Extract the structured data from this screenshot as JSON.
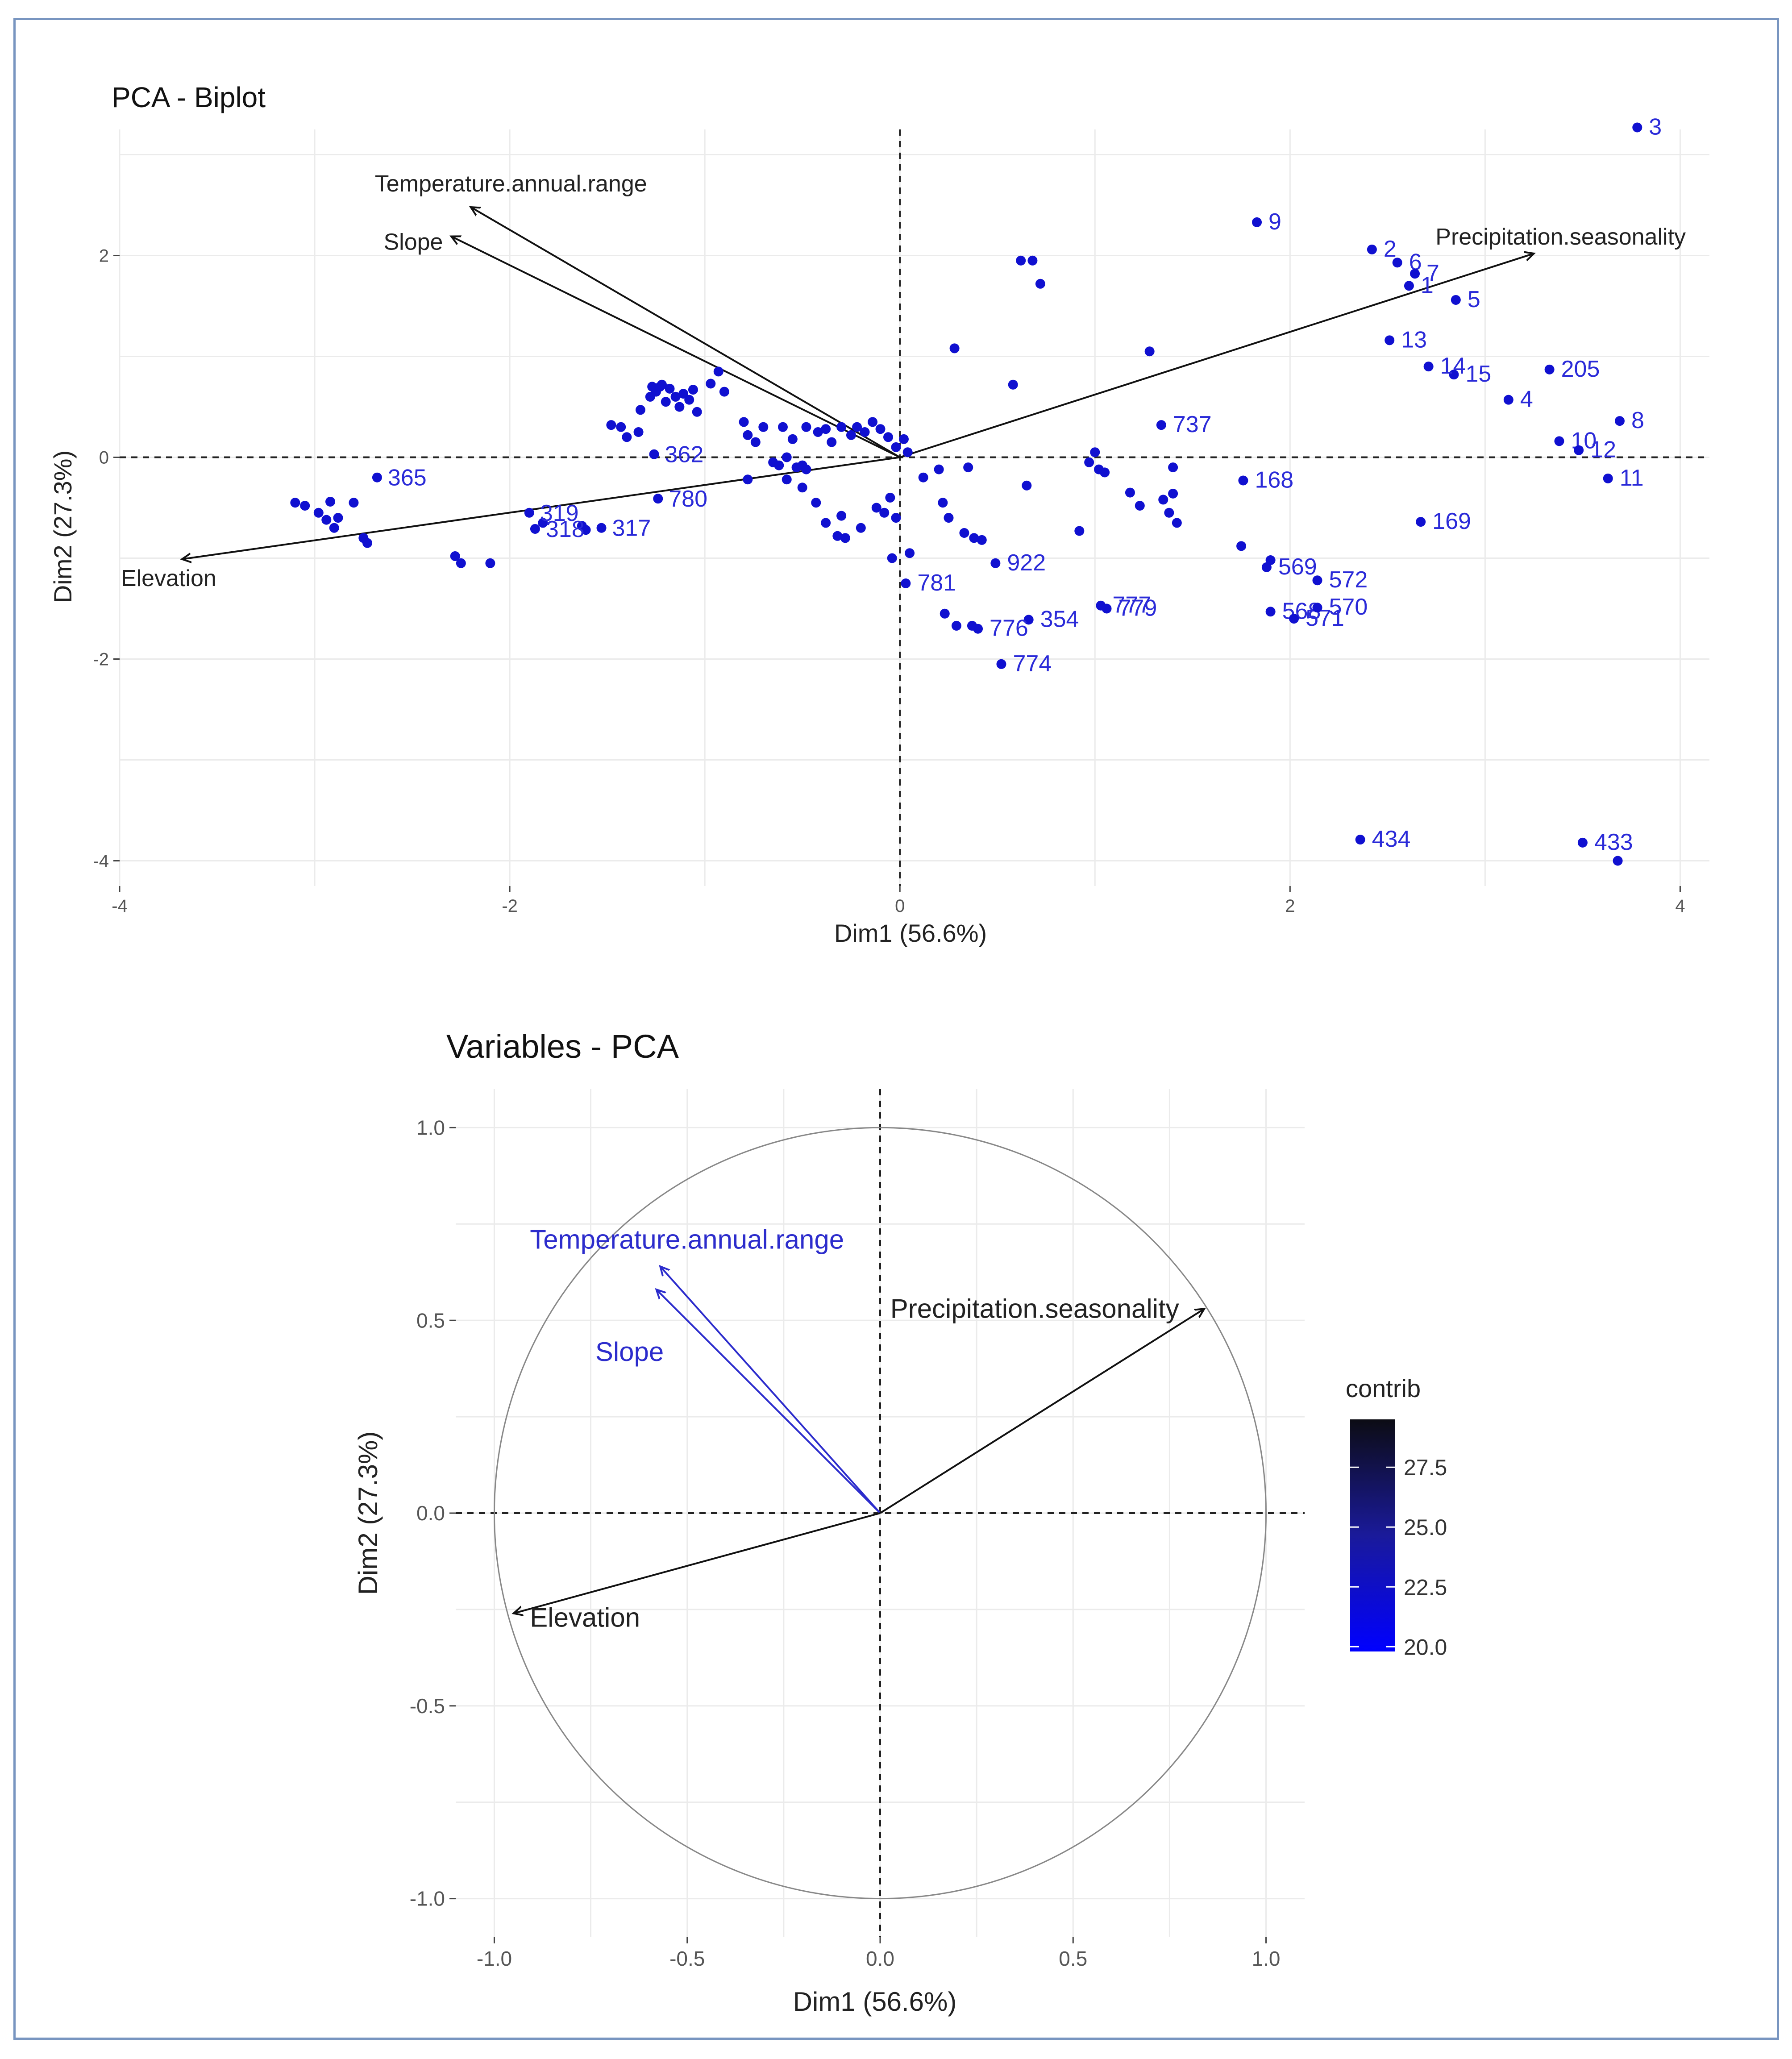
{
  "colors": {
    "point_blue": "#1010d0",
    "label_blue": "#2a2ad8",
    "arrow_black": "#111111",
    "arrow_blue": "#2c2ccc",
    "grid": "#ebebeb",
    "frame": "#7895c0"
  },
  "chart_data": [
    {
      "type": "scatter",
      "title": "PCA - Biplot",
      "xlabel": "Dim1 (56.6%)",
      "ylabel": "Dim2 (27.3%)",
      "xlim": [
        -4,
        4.15
      ],
      "ylim": [
        -4.25,
        3.25
      ],
      "xticks": [
        -4,
        -2,
        0,
        2,
        4
      ],
      "yticks": [
        -4,
        -2,
        0,
        2
      ],
      "grid": true,
      "labeled_points": [
        {
          "label": "3",
          "x": 3.78,
          "y": 3.27
        },
        {
          "label": "9",
          "x": 1.83,
          "y": 2.33
        },
        {
          "label": "2",
          "x": 2.42,
          "y": 2.06
        },
        {
          "label": "6",
          "x": 2.55,
          "y": 1.93
        },
        {
          "label": "7",
          "x": 2.64,
          "y": 1.82
        },
        {
          "label": "1",
          "x": 2.61,
          "y": 1.7
        },
        {
          "label": "5",
          "x": 2.85,
          "y": 1.56
        },
        {
          "label": "13",
          "x": 2.51,
          "y": 1.16
        },
        {
          "label": "15",
          "x": 2.84,
          "y": 0.82
        },
        {
          "label": "14",
          "x": 2.71,
          "y": 0.9
        },
        {
          "label": "4",
          "x": 3.12,
          "y": 0.57
        },
        {
          "label": "205",
          "x": 3.33,
          "y": 0.87
        },
        {
          "label": "10",
          "x": 3.38,
          "y": 0.16
        },
        {
          "label": "8",
          "x": 3.69,
          "y": 0.36
        },
        {
          "label": "12",
          "x": 3.48,
          "y": 0.07
        },
        {
          "label": "11",
          "x": 3.63,
          "y": -0.21
        },
        {
          "label": "737",
          "x": 1.34,
          "y": 0.32
        },
        {
          "label": "168",
          "x": 1.76,
          "y": -0.23
        },
        {
          "label": "169",
          "x": 2.67,
          "y": -0.64
        },
        {
          "label": "922",
          "x": 0.49,
          "y": -1.05
        },
        {
          "label": "569",
          "x": 1.88,
          "y": -1.09
        },
        {
          "label": "572",
          "x": 2.14,
          "y": -1.22
        },
        {
          "label": "568",
          "x": 1.9,
          "y": -1.53
        },
        {
          "label": "571",
          "x": 2.02,
          "y": -1.6
        },
        {
          "label": "570",
          "x": 2.14,
          "y": -1.49
        },
        {
          "label": "777",
          "x": 1.03,
          "y": -1.47
        },
        {
          "label": "779",
          "x": 1.06,
          "y": -1.5
        },
        {
          "label": "354",
          "x": 0.66,
          "y": -1.61
        },
        {
          "label": "781",
          "x": 0.03,
          "y": -1.25
        },
        {
          "label": "776",
          "x": 0.4,
          "y": -1.7
        },
        {
          "label": "774",
          "x": 0.52,
          "y": -2.05
        },
        {
          "label": "434",
          "x": 2.36,
          "y": -3.79
        },
        {
          "label": "433",
          "x": 3.5,
          "y": -3.82
        },
        {
          "label": "365",
          "x": -2.68,
          "y": -0.2
        },
        {
          "label": "362",
          "x": -1.26,
          "y": 0.03
        },
        {
          "label": "319",
          "x": -1.9,
          "y": -0.55
        },
        {
          "label": "780",
          "x": -1.24,
          "y": -0.41
        },
        {
          "label": "318",
          "x": -1.87,
          "y": -0.71
        },
        {
          "label": "317",
          "x": -1.53,
          "y": -0.7
        }
      ],
      "unlabeled_points": [
        [
          3.68,
          -4.0
        ],
        [
          -3.1,
          -0.45
        ],
        [
          -3.05,
          -0.48
        ],
        [
          -2.98,
          -0.55
        ],
        [
          -2.94,
          -0.62
        ],
        [
          -2.9,
          -0.7
        ],
        [
          -2.88,
          -0.6
        ],
        [
          -2.92,
          -0.44
        ],
        [
          -2.8,
          -0.45
        ],
        [
          -2.75,
          -0.8
        ],
        [
          -2.73,
          -0.85
        ],
        [
          -2.28,
          -0.98
        ],
        [
          -2.25,
          -1.05
        ],
        [
          -2.1,
          -1.05
        ],
        [
          -1.83,
          -0.65
        ],
        [
          -1.63,
          -0.68
        ],
        [
          -1.61,
          -0.72
        ],
        [
          -1.48,
          0.32
        ],
        [
          -1.43,
          0.3
        ],
        [
          -1.4,
          0.2
        ],
        [
          -1.34,
          0.25
        ],
        [
          -1.33,
          0.47
        ],
        [
          -1.28,
          0.6
        ],
        [
          -1.25,
          0.65
        ],
        [
          -1.23,
          0.7
        ],
        [
          -1.2,
          0.55
        ],
        [
          -1.18,
          0.68
        ],
        [
          -1.15,
          0.6
        ],
        [
          -1.13,
          0.5
        ],
        [
          -1.11,
          0.63
        ],
        [
          -1.08,
          0.57
        ],
        [
          -1.06,
          0.67
        ],
        [
          -1.04,
          0.45
        ],
        [
          -1.22,
          0.72
        ],
        [
          -1.27,
          0.7
        ],
        [
          -0.97,
          0.73
        ],
        [
          -0.93,
          0.85
        ],
        [
          -0.9,
          0.65
        ],
        [
          -0.8,
          0.35
        ],
        [
          -0.78,
          -0.22
        ],
        [
          -0.78,
          0.22
        ],
        [
          -0.74,
          0.15
        ],
        [
          -0.7,
          0.3
        ],
        [
          -0.65,
          -0.05
        ],
        [
          -0.62,
          -0.08
        ],
        [
          -0.58,
          0.0
        ],
        [
          -0.53,
          -0.1
        ],
        [
          -0.5,
          -0.08
        ],
        [
          -0.48,
          -0.12
        ],
        [
          -0.6,
          0.3
        ],
        [
          -0.55,
          0.18
        ],
        [
          -0.48,
          0.3
        ],
        [
          -0.42,
          0.25
        ],
        [
          -0.38,
          0.28
        ],
        [
          -0.35,
          0.15
        ],
        [
          -0.3,
          0.3
        ],
        [
          -0.25,
          0.22
        ],
        [
          -0.22,
          0.3
        ],
        [
          -0.18,
          0.25
        ],
        [
          -0.14,
          0.35
        ],
        [
          -0.1,
          0.28
        ],
        [
          -0.06,
          0.2
        ],
        [
          -0.02,
          0.1
        ],
        [
          0.02,
          0.18
        ],
        [
          0.04,
          0.05
        ],
        [
          -0.58,
          -0.22
        ],
        [
          -0.5,
          -0.3
        ],
        [
          -0.43,
          -0.45
        ],
        [
          -0.38,
          -0.65
        ],
        [
          -0.32,
          -0.78
        ],
        [
          -0.3,
          -0.58
        ],
        [
          -0.28,
          -0.8
        ],
        [
          -0.2,
          -0.7
        ],
        [
          -0.12,
          -0.5
        ],
        [
          -0.05,
          -0.4
        ],
        [
          -0.02,
          -0.6
        ],
        [
          -0.04,
          -1.0
        ],
        [
          0.05,
          -0.95
        ],
        [
          -0.08,
          -0.55
        ],
        [
          0.12,
          -0.2
        ],
        [
          0.22,
          -0.45
        ],
        [
          0.25,
          -0.6
        ],
        [
          0.33,
          -0.75
        ],
        [
          0.38,
          -0.8
        ],
        [
          0.35,
          -0.1
        ],
        [
          0.42,
          -0.82
        ],
        [
          0.65,
          -0.28
        ],
        [
          0.62,
          1.95
        ],
        [
          0.68,
          1.95
        ],
        [
          0.72,
          1.72
        ],
        [
          0.58,
          0.72
        ],
        [
          0.28,
          1.08
        ],
        [
          0.2,
          -0.12
        ],
        [
          0.92,
          -0.73
        ],
        [
          0.97,
          -0.05
        ],
        [
          1.0,
          0.05
        ],
        [
          1.02,
          -0.12
        ],
        [
          1.05,
          -0.15
        ],
        [
          1.18,
          -0.35
        ],
        [
          1.23,
          -0.48
        ],
        [
          1.28,
          1.05
        ],
        [
          1.35,
          -0.42
        ],
        [
          1.38,
          -0.55
        ],
        [
          1.42,
          -0.65
        ],
        [
          1.4,
          -0.36
        ],
        [
          1.4,
          -0.1
        ],
        [
          1.75,
          -0.88
        ],
        [
          1.9,
          -1.02
        ],
        [
          0.23,
          -1.55
        ],
        [
          0.29,
          -1.67
        ],
        [
          0.37,
          -1.67
        ]
      ],
      "arrows": [
        {
          "label": "Precipitation.seasonality",
          "x": 3.25,
          "y": 2.02
        },
        {
          "label": "Temperature.annual.range",
          "x": -2.2,
          "y": 2.48
        },
        {
          "label": "Slope",
          "x": -2.3,
          "y": 2.19
        },
        {
          "label": "Elevation",
          "x": -3.68,
          "y": -1.01
        }
      ]
    },
    {
      "type": "scatter",
      "title": "Variables - PCA",
      "xlabel": "Dim1 (56.6%)",
      "ylabel": "Dim2 (27.3%)",
      "xlim": [
        -1.1,
        1.1
      ],
      "ylim": [
        -1.1,
        1.1
      ],
      "xticks": [
        -1.0,
        -0.5,
        0.0,
        0.5,
        1.0
      ],
      "yticks": [
        -1.0,
        -0.5,
        0.0,
        0.5,
        1.0
      ],
      "grid": true,
      "correlation_circle_radius": 1.0,
      "arrows": [
        {
          "label": "Temperature.annual.range",
          "x": -0.57,
          "y": 0.64,
          "contrib": 20.5
        },
        {
          "label": "Slope",
          "x": -0.58,
          "y": 0.58,
          "contrib": 20.0
        },
        {
          "label": "Precipitation.seasonality",
          "x": 0.84,
          "y": 0.53,
          "contrib": 29.3
        },
        {
          "label": "Elevation",
          "x": -0.95,
          "y": -0.26,
          "contrib": 29.5
        }
      ],
      "legend": {
        "title": "contrib",
        "ticks": [
          27.5,
          25.0,
          22.5,
          20.0
        ],
        "min": 19.8,
        "max": 29.5,
        "placement": "right"
      }
    }
  ]
}
